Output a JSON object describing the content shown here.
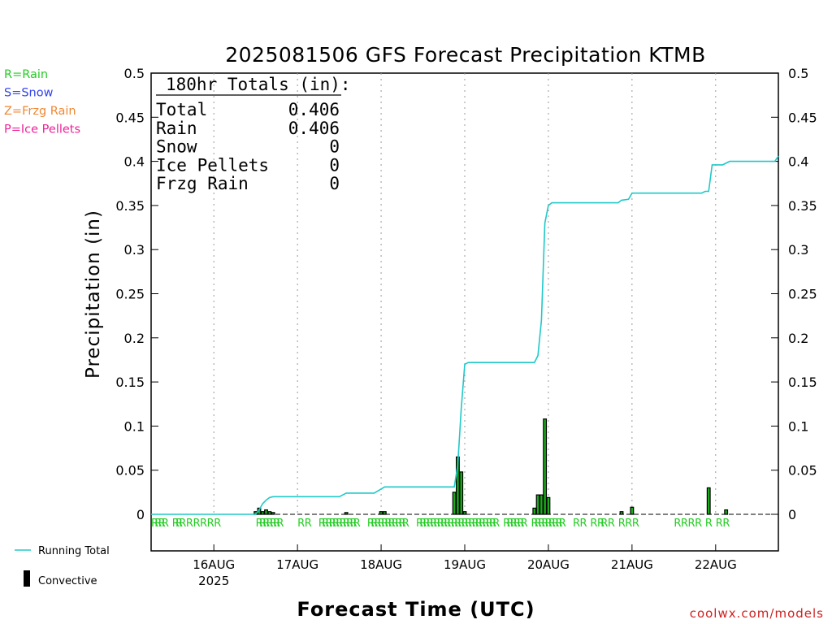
{
  "chart_data": {
    "type": "bar",
    "title": "2025081506 GFS Forecast Precipitation KTMB",
    "xlabel": "Forecast Time (UTC)",
    "ylabel": "Precipitation (in)",
    "ylim": [
      0,
      0.5
    ],
    "yticks": [
      "0",
      "0.05",
      "0.1",
      "0.15",
      "0.2",
      "0.25",
      "0.3",
      "0.35",
      "0.4",
      "0.45",
      "0.5"
    ],
    "xlim_hours": [
      0,
      180
    ],
    "xticks": [
      {
        "hour": 18,
        "label": "16AUG",
        "sublabel": "2025"
      },
      {
        "hour": 42,
        "label": "17AUG",
        "sublabel": ""
      },
      {
        "hour": 66,
        "label": "18AUG",
        "sublabel": ""
      },
      {
        "hour": 90,
        "label": "19AUG",
        "sublabel": ""
      },
      {
        "hour": 114,
        "label": "20AUG",
        "sublabel": ""
      },
      {
        "hour": 138,
        "label": "21AUG",
        "sublabel": ""
      },
      {
        "hour": 162,
        "label": "22AUG",
        "sublabel": ""
      }
    ],
    "legend": [
      {
        "name": "Running Total",
        "color": "#20c8c8"
      },
      {
        "name": "Convective",
        "color": "#000000"
      }
    ],
    "legend_placement": "bottom-left",
    "grid": "vertical-dotted",
    "series": [
      {
        "name": "Running Total",
        "kind": "line",
        "color": "#20c8c8",
        "points": [
          [
            0,
            0
          ],
          [
            30,
            0
          ],
          [
            31,
            0.005
          ],
          [
            32,
            0.012
          ],
          [
            33,
            0.016
          ],
          [
            34,
            0.019
          ],
          [
            35,
            0.02
          ],
          [
            54,
            0.02
          ],
          [
            56,
            0.024
          ],
          [
            64,
            0.024
          ],
          [
            67,
            0.031
          ],
          [
            87,
            0.031
          ],
          [
            88,
            0.056
          ],
          [
            89,
            0.12
          ],
          [
            90,
            0.17
          ],
          [
            91,
            0.172
          ],
          [
            110,
            0.172
          ],
          [
            111,
            0.18
          ],
          [
            112,
            0.22
          ],
          [
            113,
            0.33
          ],
          [
            114,
            0.35
          ],
          [
            115,
            0.353
          ],
          [
            134,
            0.353
          ],
          [
            135,
            0.356
          ],
          [
            137,
            0.357
          ],
          [
            138,
            0.364
          ],
          [
            158,
            0.364
          ],
          [
            159,
            0.366
          ],
          [
            160,
            0.366
          ],
          [
            161,
            0.396
          ],
          [
            164,
            0.396
          ],
          [
            166,
            0.4
          ],
          [
            179,
            0.4
          ],
          [
            180,
            0.406
          ]
        ]
      },
      {
        "name": "Convective",
        "kind": "bar",
        "color": "#000000",
        "fill": "#1aaa1a",
        "bars": [
          [
            30,
            0.003
          ],
          [
            31,
            0.007
          ],
          [
            32,
            0.003
          ],
          [
            33,
            0.005
          ],
          [
            34,
            0.003
          ],
          [
            35,
            0.002
          ],
          [
            56,
            0.002
          ],
          [
            66,
            0.003
          ],
          [
            67,
            0.003
          ],
          [
            87,
            0.025
          ],
          [
            88,
            0.065
          ],
          [
            89,
            0.048
          ],
          [
            90,
            0.003
          ],
          [
            110,
            0.007
          ],
          [
            111,
            0.022
          ],
          [
            112,
            0.022
          ],
          [
            113,
            0.108
          ],
          [
            114,
            0.019
          ],
          [
            135,
            0.003
          ],
          [
            138,
            0.008
          ],
          [
            160,
            0.03
          ],
          [
            165,
            0.005
          ]
        ]
      }
    ],
    "totals": {
      "heading": "180hr Totals (in):",
      "rows": [
        {
          "label": "Total",
          "value": "0.406"
        },
        {
          "label": "Rain",
          "value": "0.406"
        },
        {
          "label": "Snow",
          "value": "0"
        },
        {
          "label": "Ice Pellets",
          "value": "0"
        },
        {
          "label": "Frzg Rain",
          "value": "0"
        }
      ]
    },
    "ptype_key": [
      {
        "text": "R=Rain",
        "color": "#22cc22"
      },
      {
        "text": "S=Snow",
        "color": "#3344ee"
      },
      {
        "text": "Z=Frzg Rain",
        "color": "#ee8833"
      },
      {
        "text": "P=Ice Pellets",
        "color": "#ee2299"
      }
    ],
    "ptype_markers": {
      "letter": "R",
      "color": "#22cc22",
      "hours": [
        0,
        1,
        2,
        3,
        6,
        7,
        8,
        10,
        12,
        14,
        16,
        18,
        30,
        31,
        32,
        33,
        34,
        35,
        36,
        42,
        44,
        48,
        49,
        50,
        51,
        52,
        53,
        54,
        55,
        56,
        57,
        58,
        62,
        63,
        64,
        65,
        66,
        67,
        68,
        69,
        70,
        71,
        72,
        76,
        77,
        78,
        79,
        80,
        81,
        82,
        83,
        84,
        85,
        86,
        87,
        88,
        89,
        90,
        91,
        92,
        93,
        94,
        95,
        96,
        97,
        98,
        101,
        102,
        103,
        104,
        105,
        106,
        109,
        110,
        111,
        112,
        113,
        114,
        115,
        116,
        117,
        121,
        123,
        126,
        128,
        129,
        131,
        134,
        136,
        138,
        150,
        152,
        154,
        156,
        159,
        162,
        164
      ]
    },
    "credit": "coolwx.com/models"
  }
}
